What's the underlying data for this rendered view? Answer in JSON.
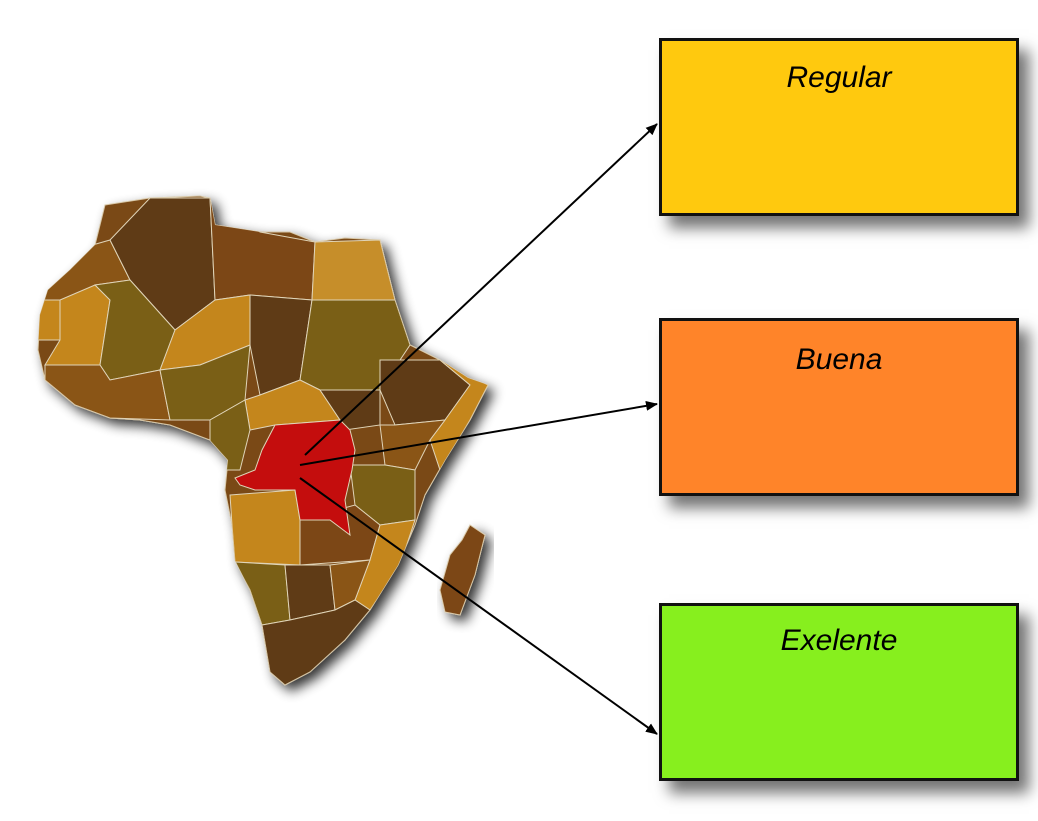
{
  "colors": {
    "regular": "#FFC90E",
    "buena": "#FF8429",
    "exelente": "#87EF1E",
    "highlight_country": "#C40E0E",
    "border": "#111111"
  },
  "boxes": [
    {
      "id": "regular",
      "label": "Regular"
    },
    {
      "id": "buena",
      "label": "Buena"
    },
    {
      "id": "exelente",
      "label": "Exelente"
    }
  ],
  "map": {
    "highlighted": "DR Congo",
    "icon": "africa-map-icon"
  }
}
